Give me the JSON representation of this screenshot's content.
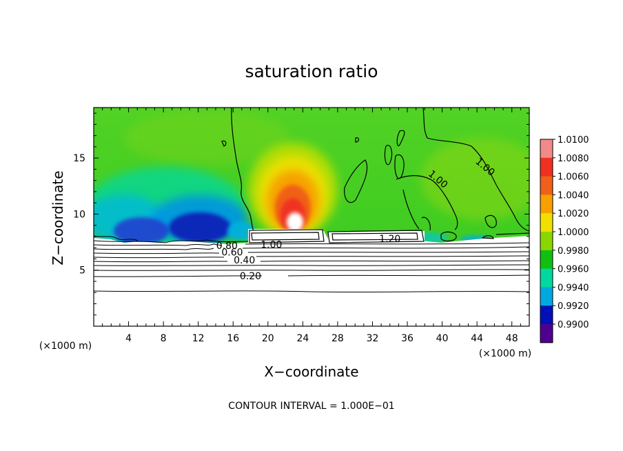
{
  "chart_data": {
    "type": "heatmap",
    "title": "saturation ratio",
    "xlabel": "X−coordinate",
    "ylabel": "Z−coordinate",
    "x_unit": "(×1000 m)",
    "xlim": [
      0,
      50
    ],
    "ylim": [
      0,
      19.5
    ],
    "x_ticks": [
      4,
      8,
      12,
      16,
      20,
      24,
      28,
      32,
      36,
      40,
      44,
      48
    ],
    "y_ticks": [
      5,
      10,
      15
    ],
    "footer": "CONTOUR INTERVAL = 1.000E−01",
    "colorbar": {
      "labels": [
        "1.0100",
        "1.0080",
        "1.0060",
        "1.0040",
        "1.0020",
        "1.0000",
        "0.9980",
        "0.9960",
        "0.9940",
        "0.9920",
        "0.9900"
      ],
      "colors": [
        "#f28a8a",
        "#f03020",
        "#f06018",
        "#f7a000",
        "#f0e000",
        "#8cd600",
        "#10c010",
        "#00d8a0",
        "#00a8e0",
        "#0010b8",
        "#500090"
      ]
    },
    "contour_labels": [
      {
        "text": "0.20",
        "x": 18.0,
        "z": 4.5
      },
      {
        "text": "0.40",
        "x": 17.3,
        "z": 5.9
      },
      {
        "text": "0.60",
        "x": 15.9,
        "z": 6.6
      },
      {
        "text": "0.80",
        "x": 15.3,
        "z": 7.2
      },
      {
        "text": "1.00",
        "x": 20.4,
        "z": 7.3
      },
      {
        "text": "1.20",
        "x": 34.0,
        "z": 7.8
      },
      {
        "text": "1.00",
        "x": 39.3,
        "z": 13.2
      },
      {
        "text": "1.00",
        "x": 44.7,
        "z": 14.3
      }
    ]
  }
}
